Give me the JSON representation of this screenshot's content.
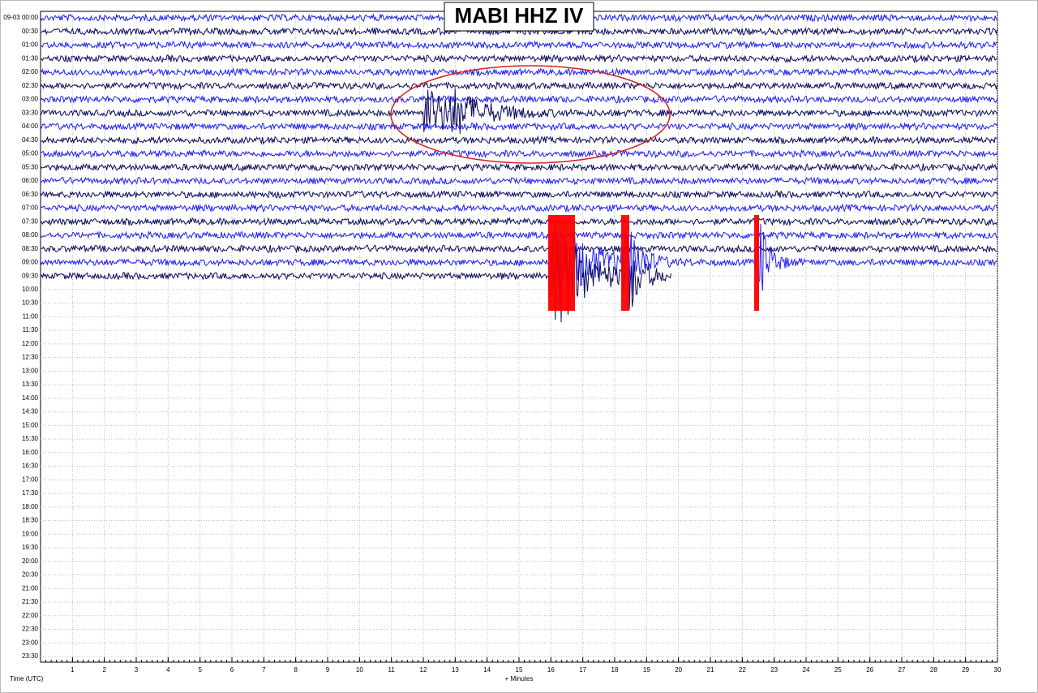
{
  "chart_data": {
    "type": "helicorder",
    "title": "MABI HHZ IV",
    "xlabel": "+ Minutes",
    "ylabel": "Time (UTC)",
    "row_labels": [
      "09-03 00:00",
      "00:30",
      "01:00",
      "01:30",
      "02:00",
      "02:30",
      "03:00",
      "03:30",
      "04:00",
      "04:30",
      "05:00",
      "05:30",
      "06:00",
      "06:30",
      "07:00",
      "07:30",
      "08:00",
      "08:30",
      "09:00",
      "09:30",
      "10:00",
      "10:30",
      "11:00",
      "11:30",
      "12:00",
      "12:30",
      "13:00",
      "13:30",
      "14:00",
      "14:30",
      "15:00",
      "15:30",
      "16:00",
      "16:30",
      "17:00",
      "17:30",
      "18:00",
      "18:30",
      "19:00",
      "19:30",
      "20:00",
      "20:30",
      "21:00",
      "21:30",
      "22:00",
      "22:30",
      "23:00",
      "23:30"
    ],
    "xlim": [
      0,
      30
    ],
    "xticks": [
      1,
      2,
      3,
      4,
      5,
      6,
      7,
      8,
      9,
      10,
      11,
      12,
      13,
      14,
      15,
      16,
      17,
      18,
      19,
      20,
      21,
      22,
      23,
      24,
      25,
      26,
      27,
      28,
      29,
      30
    ],
    "grid": true,
    "colors": [
      "#1f1fff",
      "#0b0b5e"
    ]
  }
}
